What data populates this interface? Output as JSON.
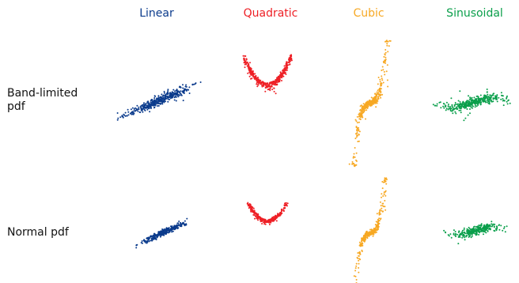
{
  "columns": [
    {
      "label": "Linear",
      "color": "#0b3b8c"
    },
    {
      "label": "Quadratic",
      "color": "#ee2026"
    },
    {
      "label": "Cubic",
      "color": "#f7a823"
    },
    {
      "label": "Sinusoidal",
      "color": "#0a9f4b"
    }
  ],
  "rows": [
    {
      "label": "Band-limited pdf"
    },
    {
      "label": "Normal pdf"
    }
  ]
}
